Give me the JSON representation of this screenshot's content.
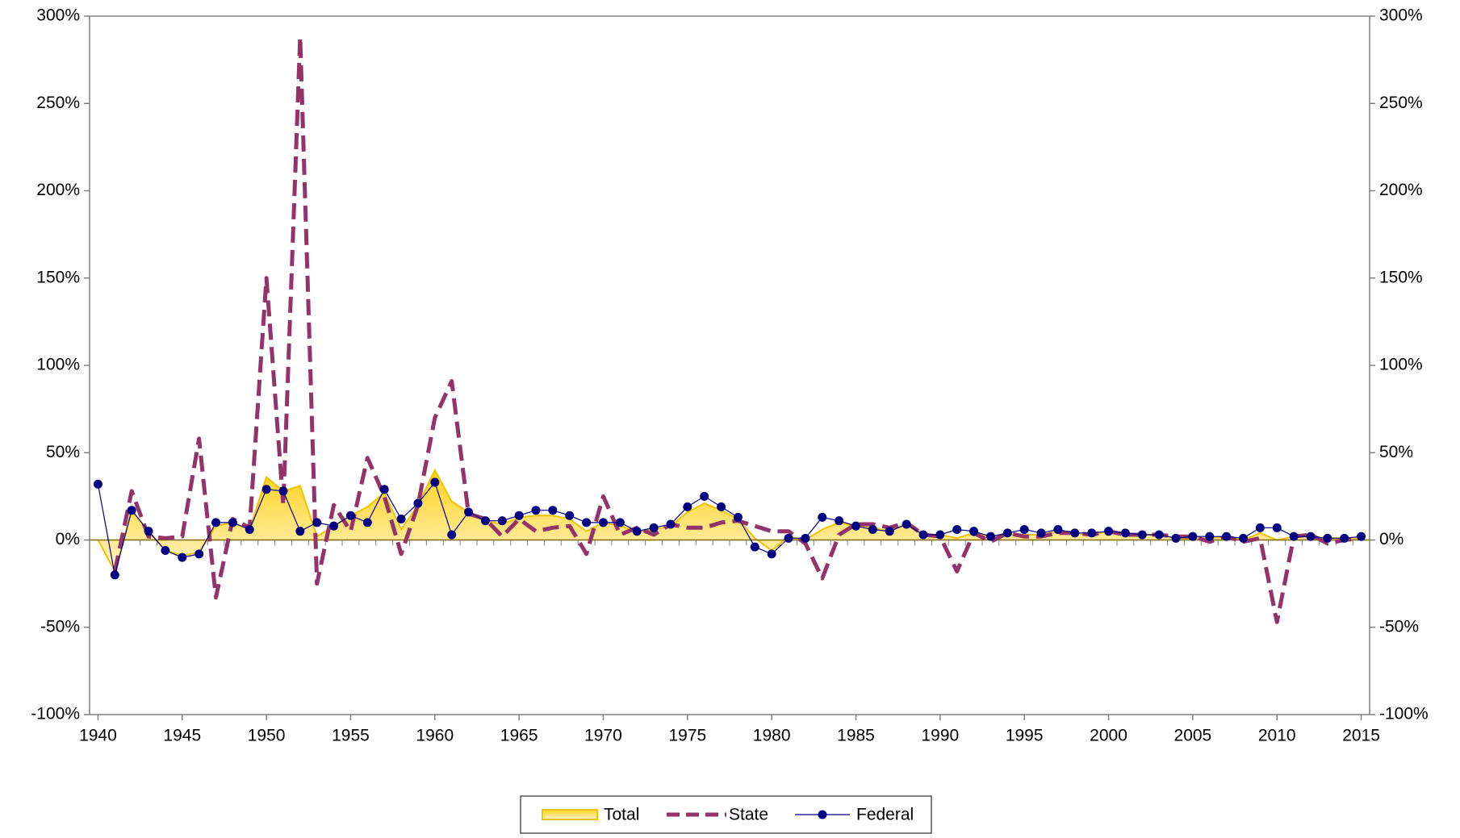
{
  "chart_data": {
    "type": "line",
    "x": [
      1940,
      1941,
      1942,
      1943,
      1944,
      1945,
      1946,
      1947,
      1948,
      1949,
      1950,
      1951,
      1952,
      1953,
      1954,
      1955,
      1956,
      1957,
      1958,
      1959,
      1960,
      1961,
      1962,
      1963,
      1964,
      1965,
      1966,
      1967,
      1968,
      1969,
      1970,
      1971,
      1972,
      1973,
      1974,
      1975,
      1976,
      1977,
      1978,
      1979,
      1980,
      1981,
      1982,
      1983,
      1984,
      1985,
      1986,
      1987,
      1988,
      1989,
      1990,
      1991,
      1992,
      1993,
      1994,
      1995,
      1996,
      1997,
      1998,
      1999,
      2000,
      2001,
      2002,
      2003,
      2004,
      2005,
      2006,
      2007,
      2008,
      2009,
      2010,
      2011,
      2012,
      2013,
      2014,
      2015
    ],
    "xlim": [
      1939.5,
      2015.5
    ],
    "xticks": [
      1940,
      1945,
      1950,
      1955,
      1960,
      1965,
      1970,
      1975,
      1980,
      1985,
      1990,
      1995,
      2000,
      2005,
      2010,
      2015
    ],
    "ylim": [
      -100,
      300
    ],
    "yticks": [
      {
        "value": -100,
        "label": "-100%"
      },
      {
        "value": -50,
        "label": "-50%"
      },
      {
        "value": 0,
        "label": "0%"
      },
      {
        "value": 50,
        "label": "50%"
      },
      {
        "value": 100,
        "label": "100%"
      },
      {
        "value": 150,
        "label": "150%"
      },
      {
        "value": 200,
        "label": "200%"
      },
      {
        "value": 250,
        "label": "250%"
      },
      {
        "value": 300,
        "label": "300%"
      }
    ],
    "y2lim": [
      -100,
      300
    ],
    "y2ticks": [
      {
        "value": -100,
        "label": "-100%"
      },
      {
        "value": -50,
        "label": "-50%"
      },
      {
        "value": 0,
        "label": "0%"
      },
      {
        "value": 50,
        "label": "50%"
      },
      {
        "value": 100,
        "label": "100%"
      },
      {
        "value": 150,
        "label": "150%"
      },
      {
        "value": 200,
        "label": "200%"
      },
      {
        "value": 250,
        "label": "250%"
      },
      {
        "value": 300,
        "label": "300%"
      }
    ],
    "grid": false,
    "legend": "bottom",
    "series": [
      {
        "name": "Total",
        "kind": "area",
        "color": "#f2c200",
        "values": [
          0,
          -18,
          17,
          5,
          -6,
          -9,
          -7,
          8,
          10,
          6,
          36,
          28,
          31,
          2,
          8,
          14,
          19,
          27,
          6,
          20,
          40,
          22,
          16,
          11,
          9,
          13,
          14,
          14,
          12,
          5,
          10,
          8,
          5,
          6,
          8,
          16,
          21,
          17,
          12,
          1,
          -6,
          2,
          0,
          6,
          10,
          8,
          7,
          5,
          9,
          3,
          3,
          1,
          4,
          2,
          3,
          3,
          3,
          5,
          4,
          3,
          5,
          3,
          3,
          3,
          1,
          1,
          1,
          2,
          0,
          4,
          0,
          2,
          2,
          1,
          1,
          1
        ]
      },
      {
        "name": "State",
        "kind": "dashed",
        "color": "#93336a",
        "values": [
          null,
          -18,
          28,
          2,
          1,
          2,
          58,
          -33,
          12,
          7,
          150,
          20,
          288,
          -25,
          20,
          5,
          47,
          25,
          -8,
          20,
          70,
          91,
          15,
          12,
          2,
          12,
          5,
          7,
          8,
          -8,
          25,
          3,
          7,
          3,
          9,
          7,
          7,
          10,
          11,
          8,
          5,
          5,
          -2,
          -22,
          3,
          9,
          9,
          7,
          10,
          3,
          2,
          -18,
          4,
          -1,
          4,
          2,
          2,
          4,
          4,
          3,
          5,
          3,
          3,
          3,
          2,
          2,
          -1,
          2,
          -1,
          1,
          -47,
          2,
          3,
          -2,
          0,
          1
        ]
      },
      {
        "name": "Federal",
        "kind": "markers",
        "color": "#000080",
        "values": [
          32,
          -20,
          17,
          5,
          -6,
          -10,
          -8,
          10,
          10,
          6,
          29,
          28,
          5,
          10,
          8,
          14,
          10,
          29,
          12,
          21,
          33,
          3,
          16,
          11,
          11,
          14,
          17,
          17,
          14,
          10,
          10,
          10,
          5,
          7,
          9,
          19,
          25,
          19,
          13,
          -4,
          -8,
          1,
          1,
          13,
          11,
          8,
          6,
          5,
          9,
          3,
          3,
          6,
          5,
          2,
          4,
          6,
          4,
          6,
          4,
          4,
          5,
          4,
          3,
          3,
          1,
          2,
          2,
          2,
          1,
          7,
          7,
          2,
          2,
          1,
          1,
          2
        ]
      }
    ]
  }
}
